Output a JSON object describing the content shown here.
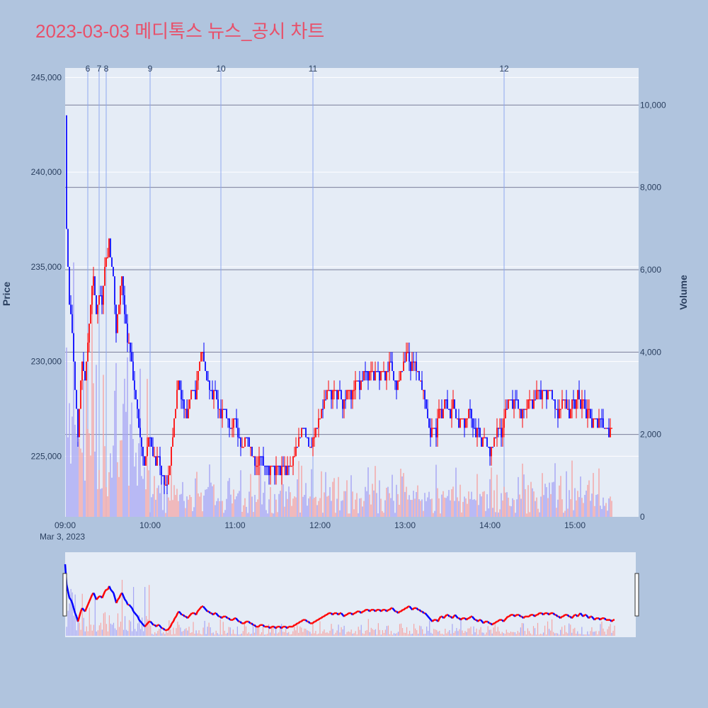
{
  "title": "2023-03-03 메디톡스 뉴스_공시 차트",
  "colors": {
    "up": "#ff0000",
    "down": "#0000ff",
    "upVol": "#f4a6a6",
    "downVol": "#a6a6f4",
    "plot_bg": "#e5ecf6",
    "page_bg": "#b0c4de",
    "title": "#e8506a",
    "news_line": "#8fa8f0"
  },
  "chart_data": {
    "type": "candlestick",
    "date_label": "Mar 3, 2023",
    "x_tick_labels": [
      "09:00",
      "10:00",
      "11:00",
      "12:00",
      "13:00",
      "14:00",
      "15:00"
    ],
    "x_range_minutes": [
      0,
      390
    ],
    "price_axis": {
      "label": "Price",
      "range": [
        221800,
        245500
      ],
      "ticks": [
        225000,
        230000,
        235000,
        240000,
        245000
      ],
      "tick_labels": [
        "225,000",
        "230,000",
        "235,000",
        "240,000",
        "245,000"
      ]
    },
    "volume_axis": {
      "label": "Volume",
      "range": [
        0,
        10900
      ],
      "ticks": [
        0,
        2000,
        4000,
        6000,
        8000,
        10000
      ],
      "tick_labels": [
        "0",
        "2,000",
        "4,000",
        "6,000",
        "8,000",
        "10,000"
      ]
    },
    "news_markers": [
      {
        "label": "6",
        "minute": 16
      },
      {
        "label": "7",
        "minute": 24
      },
      {
        "label": "8",
        "minute": 29
      },
      {
        "label": "9",
        "minute": 60
      },
      {
        "label": "10",
        "minute": 110
      },
      {
        "label": "11",
        "minute": 175
      },
      {
        "label": "12",
        "minute": 310
      }
    ],
    "price_path": [
      [
        0,
        243000
      ],
      [
        1,
        237000
      ],
      [
        3,
        233000
      ],
      [
        5,
        231500
      ],
      [
        7,
        228500
      ],
      [
        9,
        226000
      ],
      [
        10,
        227500
      ],
      [
        12,
        230000
      ],
      [
        14,
        229000
      ],
      [
        16,
        231000
      ],
      [
        18,
        233000
      ],
      [
        20,
        234500
      ],
      [
        22,
        232500
      ],
      [
        24,
        233500
      ],
      [
        26,
        233000
      ],
      [
        28,
        235000
      ],
      [
        30,
        235500
      ],
      [
        31,
        236500
      ],
      [
        32,
        235500
      ],
      [
        34,
        234500
      ],
      [
        36,
        231500
      ],
      [
        38,
        233000
      ],
      [
        40,
        234500
      ],
      [
        42,
        232500
      ],
      [
        44,
        231000
      ],
      [
        46,
        230500
      ],
      [
        48,
        229000
      ],
      [
        50,
        228000
      ],
      [
        52,
        226500
      ],
      [
        54,
        225500
      ],
      [
        56,
        224500
      ],
      [
        58,
        225500
      ],
      [
        60,
        226000
      ],
      [
        62,
        225000
      ],
      [
        64,
        224500
      ],
      [
        66,
        225000
      ],
      [
        68,
        224000
      ],
      [
        70,
        223500
      ],
      [
        72,
        223500
      ],
      [
        74,
        224500
      ],
      [
        76,
        226000
      ],
      [
        78,
        227500
      ],
      [
        80,
        229000
      ],
      [
        82,
        228000
      ],
      [
        84,
        227500
      ],
      [
        86,
        227000
      ],
      [
        88,
        228000
      ],
      [
        90,
        228500
      ],
      [
        92,
        228000
      ],
      [
        94,
        229500
      ],
      [
        96,
        230500
      ],
      [
        98,
        230000
      ],
      [
        100,
        229000
      ],
      [
        102,
        228500
      ],
      [
        104,
        228000
      ],
      [
        106,
        228500
      ],
      [
        108,
        227500
      ],
      [
        110,
        227000
      ],
      [
        112,
        227500
      ],
      [
        114,
        227000
      ],
      [
        116,
        226500
      ],
      [
        118,
        226500
      ],
      [
        120,
        227000
      ],
      [
        122,
        226000
      ],
      [
        124,
        225500
      ],
      [
        126,
        225500
      ],
      [
        128,
        226000
      ],
      [
        130,
        225500
      ],
      [
        132,
        225000
      ],
      [
        134,
        224500
      ],
      [
        136,
        224500
      ],
      [
        138,
        225000
      ],
      [
        140,
        224500
      ],
      [
        142,
        224500
      ],
      [
        144,
        224000
      ],
      [
        146,
        224500
      ],
      [
        148,
        224000
      ],
      [
        150,
        224500
      ],
      [
        152,
        224000
      ],
      [
        154,
        224500
      ],
      [
        156,
        224000
      ],
      [
        158,
        224500
      ],
      [
        160,
        224500
      ],
      [
        162,
        225000
      ],
      [
        164,
        225500
      ],
      [
        166,
        226000
      ],
      [
        168,
        226500
      ],
      [
        170,
        226000
      ],
      [
        172,
        225500
      ],
      [
        174,
        225500
      ],
      [
        176,
        226000
      ],
      [
        178,
        226500
      ],
      [
        180,
        227000
      ],
      [
        182,
        227500
      ],
      [
        184,
        228000
      ],
      [
        186,
        228500
      ],
      [
        188,
        228000
      ],
      [
        190,
        228500
      ],
      [
        192,
        228000
      ],
      [
        194,
        228500
      ],
      [
        196,
        227500
      ],
      [
        198,
        228000
      ],
      [
        200,
        228500
      ],
      [
        202,
        228000
      ],
      [
        204,
        228500
      ],
      [
        206,
        229000
      ],
      [
        208,
        228500
      ],
      [
        210,
        229000
      ],
      [
        212,
        229500
      ],
      [
        214,
        229000
      ],
      [
        216,
        229500
      ],
      [
        218,
        229000
      ],
      [
        220,
        229500
      ],
      [
        222,
        229000
      ],
      [
        224,
        229500
      ],
      [
        226,
        229000
      ],
      [
        228,
        229500
      ],
      [
        230,
        230000
      ],
      [
        232,
        229000
      ],
      [
        234,
        228500
      ],
      [
        236,
        229000
      ],
      [
        238,
        229500
      ],
      [
        240,
        230000
      ],
      [
        242,
        230500
      ],
      [
        244,
        229500
      ],
      [
        246,
        230000
      ],
      [
        248,
        229500
      ],
      [
        250,
        229000
      ],
      [
        252,
        228500
      ],
      [
        254,
        228000
      ],
      [
        256,
        227000
      ],
      [
        258,
        226000
      ],
      [
        260,
        226500
      ],
      [
        262,
        226000
      ],
      [
        264,
        227500
      ],
      [
        266,
        227000
      ],
      [
        268,
        228000
      ],
      [
        270,
        227500
      ],
      [
        272,
        227000
      ],
      [
        274,
        228000
      ],
      [
        276,
        227000
      ],
      [
        278,
        226500
      ],
      [
        280,
        227000
      ],
      [
        282,
        226500
      ],
      [
        284,
        227000
      ],
      [
        286,
        227500
      ],
      [
        288,
        226500
      ],
      [
        290,
        226000
      ],
      [
        292,
        226500
      ],
      [
        294,
        225500
      ],
      [
        296,
        226000
      ],
      [
        298,
        225500
      ],
      [
        300,
        225000
      ],
      [
        302,
        225500
      ],
      [
        304,
        226000
      ],
      [
        306,
        226500
      ],
      [
        308,
        226000
      ],
      [
        310,
        227000
      ],
      [
        312,
        227500
      ],
      [
        314,
        228000
      ],
      [
        316,
        227500
      ],
      [
        318,
        228000
      ],
      [
        320,
        227500
      ],
      [
        322,
        227000
      ],
      [
        324,
        227500
      ],
      [
        326,
        227500
      ],
      [
        328,
        228000
      ],
      [
        330,
        227500
      ],
      [
        332,
        228000
      ],
      [
        334,
        228500
      ],
      [
        336,
        228000
      ],
      [
        338,
        228500
      ],
      [
        340,
        228000
      ],
      [
        342,
        228500
      ],
      [
        344,
        228000
      ],
      [
        346,
        227500
      ],
      [
        348,
        227000
      ],
      [
        350,
        227500
      ],
      [
        352,
        228000
      ],
      [
        354,
        227500
      ],
      [
        356,
        227000
      ],
      [
        358,
        228000
      ],
      [
        360,
        227500
      ],
      [
        362,
        228500
      ],
      [
        364,
        227500
      ],
      [
        366,
        228000
      ],
      [
        368,
        227000
      ],
      [
        370,
        227500
      ],
      [
        372,
        226500
      ],
      [
        374,
        227000
      ],
      [
        376,
        226500
      ],
      [
        378,
        227000
      ],
      [
        380,
        226500
      ],
      [
        382,
        226500
      ],
      [
        384,
        226000
      ],
      [
        386,
        226500
      ]
    ]
  }
}
